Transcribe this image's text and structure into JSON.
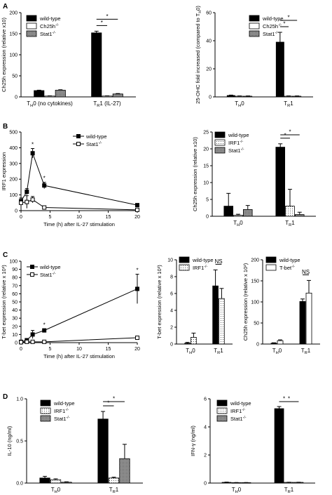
{
  "panel_labels": [
    "A",
    "B",
    "C",
    "D"
  ],
  "styles": {
    "wild-type": "solid",
    "Ch25h-/-": "open",
    "Stat1-/-": "dense",
    "IRF1-/-": "dot",
    "T-bet-/-": "open"
  },
  "chart_data": [
    {
      "id": "A1",
      "panel": "A",
      "type": "bar",
      "ylabel": "Ch25h expression (relative x10)",
      "ylim": [
        0,
        200
      ],
      "yticks": [
        0,
        50,
        100,
        150,
        200
      ],
      "ytick_labels": [
        "0",
        "50",
        "100",
        "150",
        "200"
      ],
      "categories": [
        "TH0 (no cytokines)",
        "TR1 (IL-27)"
      ],
      "series": [
        {
          "name": "wild-type",
          "values": [
            15,
            152
          ],
          "errors": [
            1,
            4
          ]
        },
        {
          "name": "Ch25h-/-",
          "values": [
            2,
            2
          ],
          "errors": [
            0.5,
            0.5
          ]
        },
        {
          "name": "Stat1-/-",
          "values": [
            16,
            7
          ],
          "errors": [
            1,
            1
          ]
        }
      ],
      "significance": [
        [
          "wild-type",
          "Ch25h-/-",
          "*"
        ],
        [
          "wild-type",
          "Stat1-/-",
          "*"
        ]
      ]
    },
    {
      "id": "A2",
      "panel": "A",
      "type": "bar",
      "ylabel": "25-OHC fold increased (compared to TH0)",
      "ylim": [
        0,
        60
      ],
      "yticks": [
        0,
        20,
        40,
        60
      ],
      "ytick_labels": [
        "0",
        "20",
        "40",
        "60"
      ],
      "categories": [
        "TH0",
        "TR1"
      ],
      "series": [
        {
          "name": "wild-type",
          "values": [
            1,
            39
          ],
          "errors": [
            0.3,
            7
          ]
        },
        {
          "name": "Ch25h-/-",
          "values": [
            0.5,
            0.5
          ],
          "errors": [
            0.2,
            0.2
          ]
        },
        {
          "name": "Stat1-/-",
          "values": [
            0.5,
            0.5
          ],
          "errors": [
            0.2,
            0.2
          ]
        }
      ],
      "significance": [
        [
          "wild-type",
          "Ch25h-/-",
          "*"
        ],
        [
          "wild-type",
          "Stat1-/-",
          "*"
        ]
      ]
    },
    {
      "id": "B1",
      "panel": "B",
      "type": "line",
      "xlabel": "Time (h) after IL-27 stimulation",
      "ylabel": "IRF1 expression",
      "xlim": [
        0,
        20
      ],
      "xticks": [
        0,
        5,
        10,
        15,
        20
      ],
      "xtick_labels": [
        "0",
        "5",
        "10",
        "15",
        "20"
      ],
      "ylim": [
        0,
        500
      ],
      "yticks": [
        0,
        100,
        200,
        300,
        400,
        500
      ],
      "ytick_labels": [
        "0",
        "100",
        "200",
        "300",
        "400",
        "500"
      ],
      "series": [
        {
          "name": "wild-type",
          "marker": "filled-square",
          "x": [
            0,
            1,
            2,
            4,
            20
          ],
          "y": [
            60,
            120,
            365,
            160,
            35
          ],
          "errors": [
            20,
            20,
            30,
            20,
            5
          ]
        },
        {
          "name": "Stat1-/-",
          "marker": "open-square",
          "x": [
            0,
            1,
            2,
            4,
            20
          ],
          "y": [
            50,
            55,
            70,
            20,
            5
          ],
          "errors": [
            30,
            40,
            20,
            5,
            3
          ]
        }
      ],
      "annotations": [
        {
          "x": 2,
          "text": "*"
        },
        {
          "x": 4,
          "text": "*"
        }
      ]
    },
    {
      "id": "B2",
      "panel": "B",
      "type": "bar",
      "ylabel": "Ch25h expression (relative x10)",
      "ylim": [
        0,
        25
      ],
      "yticks": [
        0,
        5,
        10,
        15,
        20,
        25
      ],
      "ytick_labels": [
        "0",
        "5",
        "10",
        "15",
        "20",
        "25"
      ],
      "categories": [
        "TH0",
        "TR1"
      ],
      "series": [
        {
          "name": "wild-type",
          "values": [
            3,
            20.5
          ],
          "errors": [
            3.8,
            1
          ]
        },
        {
          "name": "IRF1-/-",
          "values": [
            0.3,
            3
          ],
          "errors": [
            0.3,
            5
          ]
        },
        {
          "name": "Stat1-/-",
          "values": [
            2,
            0.5
          ],
          "errors": [
            1.2,
            0.7
          ]
        }
      ],
      "significance": [
        [
          "wild-type",
          "IRF1-/-",
          "*"
        ],
        [
          "wild-type",
          "Stat1-/-",
          "*"
        ]
      ]
    },
    {
      "id": "C1",
      "panel": "C",
      "type": "line",
      "xlabel": "Time (h) after IL-27 stimulation",
      "ylabel": "T-bet expression (relative x 10³)",
      "xlim": [
        0,
        20
      ],
      "xticks": [
        0,
        5,
        10,
        15,
        20
      ],
      "xtick_labels": [
        "0",
        "5",
        "10",
        "15",
        "20"
      ],
      "ylim": [
        0,
        100
      ],
      "yticks": [
        0,
        10,
        20,
        30,
        40,
        50,
        60,
        70,
        80,
        90,
        100
      ],
      "ytick_labels": [
        "0",
        "10",
        "20",
        "30",
        "40",
        "50",
        "60",
        "70",
        "80",
        "90",
        "100"
      ],
      "series": [
        {
          "name": "wild-type",
          "marker": "filled-square",
          "x": [
            0,
            1,
            2,
            4,
            20
          ],
          "y": [
            1,
            3,
            10,
            15,
            66
          ],
          "errors": [
            1,
            2,
            5,
            2,
            18
          ]
        },
        {
          "name": "Stat1-/-",
          "marker": "open-square",
          "x": [
            0,
            1,
            2,
            4,
            20
          ],
          "y": [
            0.5,
            1,
            1,
            1,
            6
          ],
          "errors": [
            0.5,
            1,
            1,
            1,
            1
          ]
        }
      ],
      "annotations": [
        {
          "x": 4,
          "text": "*"
        },
        {
          "x": 20,
          "text": "*"
        }
      ]
    },
    {
      "id": "C2",
      "panel": "C",
      "type": "bar",
      "ylabel": "T-bet expression (relative x 10³)",
      "ylim": [
        0,
        10
      ],
      "yticks": [
        0,
        2,
        4,
        6,
        8,
        10
      ],
      "ytick_labels": [
        "0",
        "2",
        "4",
        "6",
        "8",
        "10"
      ],
      "categories": [
        "TH0",
        "TR1"
      ],
      "series": [
        {
          "name": "wild-type",
          "values": [
            0.1,
            6.9
          ],
          "errors": [
            0.1,
            1.9
          ]
        },
        {
          "name": "IRF1-/-",
          "values": [
            0.8,
            5.4
          ],
          "errors": [
            0.5,
            1.2
          ]
        }
      ],
      "significance": [
        [
          "wild-type",
          "IRF1-/-",
          "NS"
        ]
      ]
    },
    {
      "id": "C3",
      "panel": "C",
      "type": "bar",
      "ylabel": "Ch25h expression (relative x 10²)",
      "ylim": [
        0,
        200
      ],
      "yticks": [
        0,
        50,
        100,
        150,
        200
      ],
      "ytick_labels": [
        "0",
        "50",
        "100",
        "150",
        "200"
      ],
      "categories": [
        "TH0",
        "TR1"
      ],
      "series": [
        {
          "name": "wild-type",
          "values": [
            2,
            101
          ],
          "errors": [
            1,
            6
          ]
        },
        {
          "name": "T-bet-/-",
          "values": [
            8,
            121
          ],
          "errors": [
            2,
            30
          ]
        }
      ],
      "significance": [
        [
          "wild-type",
          "T-bet-/-",
          "NS"
        ]
      ]
    },
    {
      "id": "D1",
      "panel": "D",
      "type": "bar",
      "ylabel": "IL-10 (ng/ml)",
      "ylim": [
        0,
        1.0
      ],
      "yticks": [
        0,
        0.5,
        1.0
      ],
      "ytick_labels": [
        "0.0",
        "0.5",
        "1.0"
      ],
      "categories": [
        "TH0",
        "TR1"
      ],
      "series": [
        {
          "name": "wild-type",
          "values": [
            0.06,
            0.76
          ],
          "errors": [
            0.02,
            0.09
          ]
        },
        {
          "name": "IRF1-/-",
          "values": [
            0.04,
            0.06
          ],
          "errors": [
            0.01,
            0.01
          ]
        },
        {
          "name": "Stat1-/-",
          "values": [
            0.01,
            0.29
          ],
          "errors": [
            0.005,
            0.17
          ]
        }
      ],
      "significance": [
        [
          "wild-type",
          "IRF1-/-",
          "*"
        ],
        [
          "wild-type",
          "Stat1-/-",
          "*"
        ]
      ]
    },
    {
      "id": "D2",
      "panel": "D",
      "type": "bar",
      "ylabel": "IFN-γ (ng/ml)",
      "ylim": [
        0,
        6
      ],
      "yticks": [
        0,
        2,
        4,
        6
      ],
      "ytick_labels": [
        "0",
        "2",
        "4",
        "6"
      ],
      "categories": [
        "TH0",
        "TR1"
      ],
      "series": [
        {
          "name": "wild-type",
          "values": [
            0.05,
            5.3
          ],
          "errors": [
            0.02,
            0.15
          ]
        },
        {
          "name": "IRF1-/-",
          "values": [
            0.03,
            0.05
          ],
          "errors": [
            0.01,
            0.01
          ]
        },
        {
          "name": "Stat1-/-",
          "values": [
            0.03,
            0.05
          ],
          "errors": [
            0.01,
            0.01
          ]
        }
      ],
      "significance": [
        [
          "wild-type",
          "IRF1-/-",
          "*"
        ],
        [
          "wild-type",
          "Stat1-/-",
          "*"
        ]
      ]
    }
  ]
}
